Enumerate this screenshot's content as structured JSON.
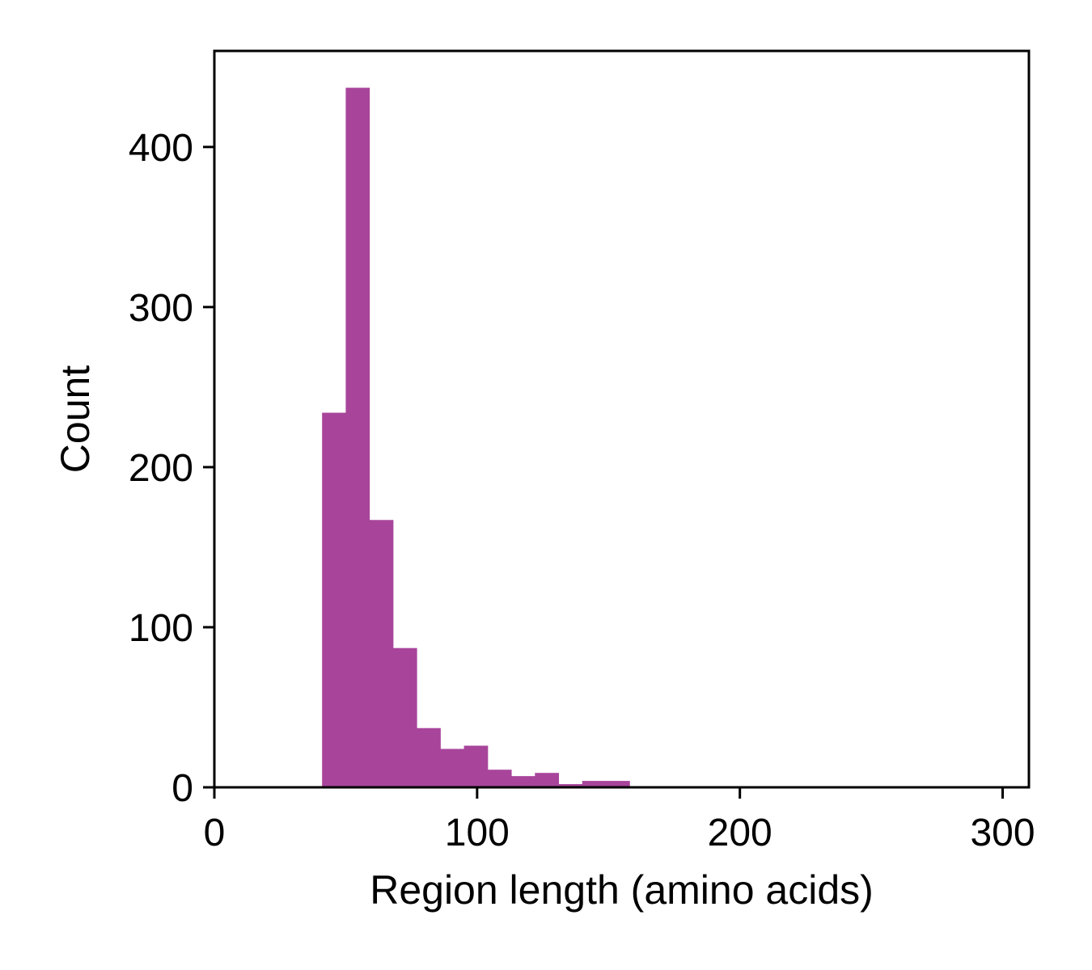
{
  "chart_data": {
    "type": "bar",
    "title": "",
    "xlabel": "Region length (amino acids)",
    "ylabel": "Count",
    "xlim": [
      0,
      310
    ],
    "ylim": [
      0,
      460
    ],
    "xticks": [
      0,
      100,
      200,
      300
    ],
    "yticks": [
      0,
      100,
      200,
      300,
      400
    ],
    "grid": false,
    "bar_color": "#a8459a",
    "bins": [
      {
        "x0": 41,
        "x1": 50,
        "count": 234
      },
      {
        "x0": 50,
        "x1": 59,
        "count": 437
      },
      {
        "x0": 59,
        "x1": 68,
        "count": 167
      },
      {
        "x0": 68,
        "x1": 77,
        "count": 87
      },
      {
        "x0": 77,
        "x1": 86,
        "count": 37
      },
      {
        "x0": 86,
        "x1": 95,
        "count": 24
      },
      {
        "x0": 95,
        "x1": 104,
        "count": 26
      },
      {
        "x0": 104,
        "x1": 113,
        "count": 11
      },
      {
        "x0": 113,
        "x1": 122,
        "count": 7
      },
      {
        "x0": 122,
        "x1": 131,
        "count": 9
      },
      {
        "x0": 131,
        "x1": 140,
        "count": 2
      },
      {
        "x0": 140,
        "x1": 149,
        "count": 4
      },
      {
        "x0": 149,
        "x1": 158,
        "count": 4
      }
    ]
  }
}
